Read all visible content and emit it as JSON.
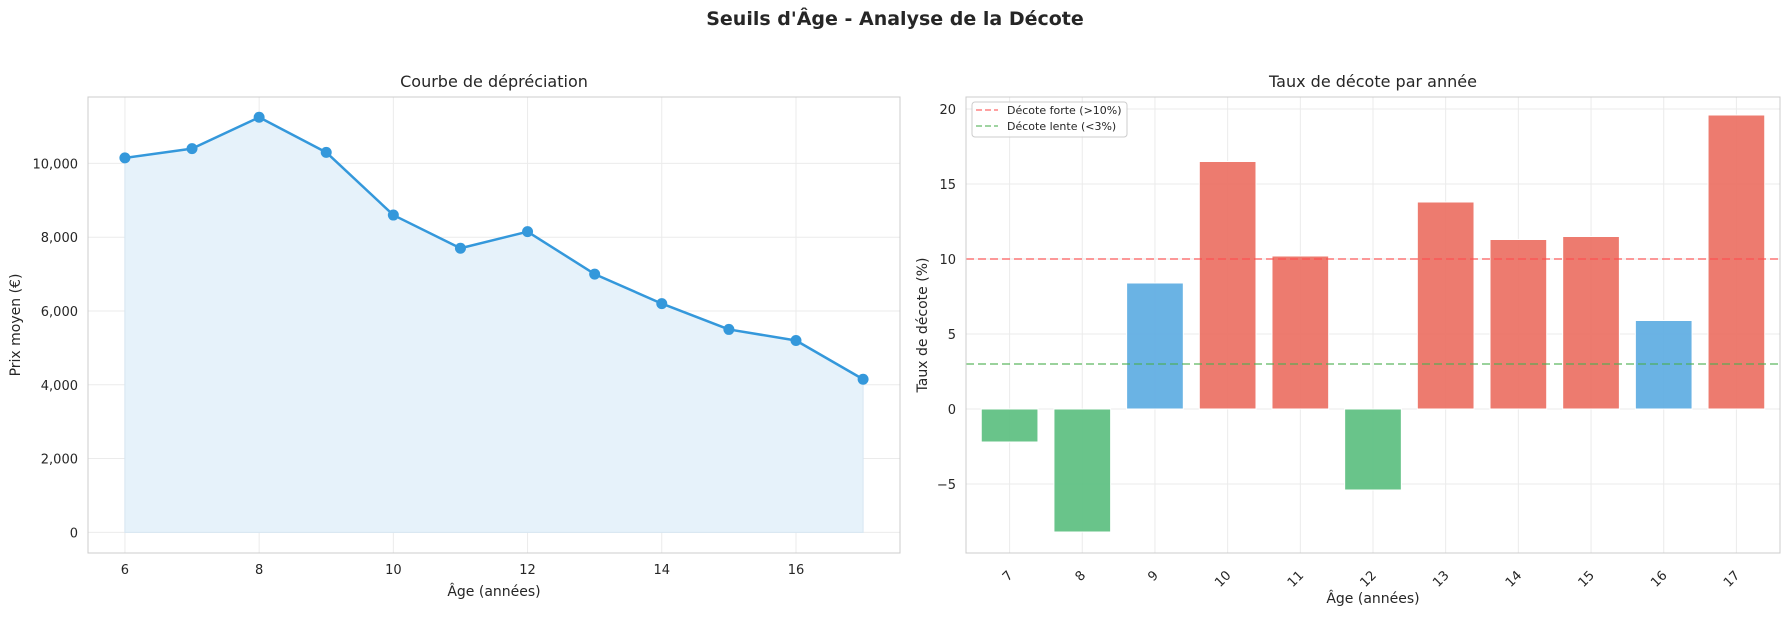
{
  "suptitle": "Seuils d'Âge - Analyse de la Décote",
  "chart_data": [
    {
      "type": "line",
      "title": "Courbe de dépréciation",
      "xlabel": "Âge (années)",
      "ylabel": "Prix moyen (€)",
      "x": [
        6,
        7,
        8,
        9,
        10,
        11,
        12,
        13,
        14,
        15,
        16,
        17
      ],
      "series": [
        {
          "values": [
            10150,
            10400,
            11250,
            10300,
            8600,
            7700,
            8150,
            7000,
            6200,
            5500,
            5200,
            4150
          ]
        }
      ],
      "xlim": [
        5.45,
        17.55
      ],
      "ylim": [
        -560,
        11800
      ],
      "xticks": [
        6,
        8,
        10,
        12,
        14,
        16
      ],
      "yticks": [
        0,
        2000,
        4000,
        6000,
        8000,
        10000
      ],
      "ytick_labels": [
        "0",
        "2,000",
        "4,000",
        "6,000",
        "8,000",
        "10,000"
      ],
      "filled_area": true,
      "grid": true,
      "color": "#3498db",
      "fill_color": "#e6f2fa"
    },
    {
      "type": "bar",
      "title": "Taux de décote par année",
      "xlabel": "Âge (années)",
      "ylabel": "Taux de décote (%)",
      "categories": [
        "7",
        "8",
        "9",
        "10",
        "11",
        "12",
        "13",
        "14",
        "15",
        "16",
        "17"
      ],
      "values": [
        -2.2,
        -8.2,
        8.4,
        16.5,
        10.2,
        -5.4,
        13.8,
        11.3,
        11.5,
        5.9,
        19.6
      ],
      "bar_colors": [
        "#5cbf80",
        "#5cbf80",
        "#5dade2",
        "#ec7063",
        "#ec7063",
        "#5cbf80",
        "#ec7063",
        "#ec7063",
        "#ec7063",
        "#5dade2",
        "#ec7063"
      ],
      "ylim": [
        -9.6,
        20.8
      ],
      "yticks": [
        -5,
        0,
        5,
        10,
        15,
        20
      ],
      "ytick_labels": [
        "−5",
        "0",
        "5",
        "10",
        "15",
        "20"
      ],
      "thresholds": [
        {
          "label": "Décote forte (>10%)",
          "value": 10,
          "color": "#ff4d4d"
        },
        {
          "label": "Décote lente (<3%)",
          "value": 3,
          "color": "#4caf50"
        }
      ],
      "legend_position": "top-left",
      "grid": true
    }
  ]
}
